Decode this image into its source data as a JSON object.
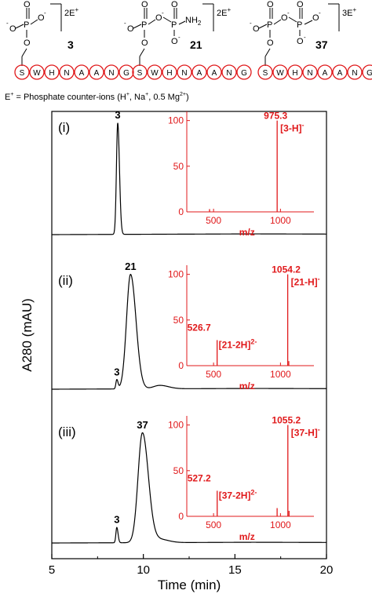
{
  "structures": [
    {
      "id": "3",
      "charge": "2E",
      "phosphates": 1,
      "terminal_group": null,
      "sequence": [
        "S",
        "W",
        "H",
        "N",
        "A",
        "A",
        "N",
        "G"
      ]
    },
    {
      "id": "21",
      "charge": "2E",
      "phosphates": 2,
      "terminal_group": "NH2",
      "sequence": [
        "S",
        "W",
        "H",
        "N",
        "A",
        "A",
        "N",
        "G"
      ]
    },
    {
      "id": "37",
      "charge": "3E",
      "phosphates": 2,
      "terminal_group": null,
      "sequence": [
        "S",
        "W",
        "H",
        "N",
        "A",
        "A",
        "N",
        "G"
      ]
    }
  ],
  "legend_note": "E = Phosphate counter-ions (H, Na, 0.5 Mg)",
  "legend_note_parts": {
    "prefix": "E",
    "text1": " = Phosphate counter-ions (H",
    "text2": ", Na",
    "text3": ", 0.5 Mg",
    "text4": ")"
  },
  "chart_data": {
    "type": "line",
    "xlabel": "Time (min)",
    "ylabel": "A280 (mAU)",
    "xlim": [
      5,
      20
    ],
    "xticks": [
      5,
      10,
      15,
      20
    ],
    "traces": [
      {
        "panel": "(i)",
        "peaks": [
          {
            "x": 8.6,
            "height": 1.0,
            "width": 0.07,
            "label": "3"
          }
        ],
        "inset": {
          "type": "bar",
          "xlabel": "m/z",
          "xticks": [
            500,
            1000
          ],
          "yticks": [
            0,
            50,
            100
          ],
          "xlim": [
            300,
            1250
          ],
          "ylim": [
            0,
            110
          ],
          "x": [
            470,
            975.3
          ],
          "y": [
            3,
            100
          ],
          "labels": [
            {
              "mz": "975.3",
              "ion": "[3-H]",
              "charge": "-"
            }
          ]
        }
      },
      {
        "panel": "(ii)",
        "peaks": [
          {
            "x": 8.55,
            "height": 0.08,
            "width": 0.05,
            "label": "3"
          },
          {
            "x": 9.3,
            "height": 1.0,
            "width": 0.22,
            "label": "21"
          },
          {
            "x": 10.9,
            "height": 0.03,
            "width": 0.35,
            "label": ""
          }
        ],
        "inset": {
          "type": "bar",
          "xlabel": "m/z",
          "xticks": [
            500,
            1000
          ],
          "yticks": [
            0,
            50,
            100
          ],
          "xlim": [
            300,
            1250
          ],
          "ylim": [
            0,
            110
          ],
          "x": [
            526.7,
            1054.2,
            1062
          ],
          "y": [
            28,
            100,
            5
          ],
          "labels": [
            {
              "mz": "526.7",
              "ion": "[21-2H]",
              "charge": "2-"
            },
            {
              "mz": "1054.2",
              "ion": "[21-H]",
              "charge": "-"
            }
          ]
        }
      },
      {
        "panel": "(iii)",
        "peaks": [
          {
            "x": 8.55,
            "height": 0.14,
            "width": 0.05,
            "label": "3"
          },
          {
            "x": 9.95,
            "height": 1.0,
            "width": 0.24,
            "label": "37"
          },
          {
            "x": 10.9,
            "height": 0.03,
            "width": 0.35,
            "label": ""
          }
        ],
        "inset": {
          "type": "bar",
          "xlabel": "m/z",
          "xticks": [
            500,
            1000
          ],
          "yticks": [
            0,
            50,
            100
          ],
          "xlim": [
            300,
            1250
          ],
          "ylim": [
            0,
            110
          ],
          "x": [
            527.2,
            975,
            1055.2,
            1064
          ],
          "y": [
            28,
            9,
            100,
            6
          ],
          "labels": [
            {
              "mz": "527.2",
              "ion": "[37-2H]",
              "charge": "2-"
            },
            {
              "mz": "1055.2",
              "ion": "[37-H]",
              "charge": "-"
            }
          ]
        }
      }
    ]
  }
}
